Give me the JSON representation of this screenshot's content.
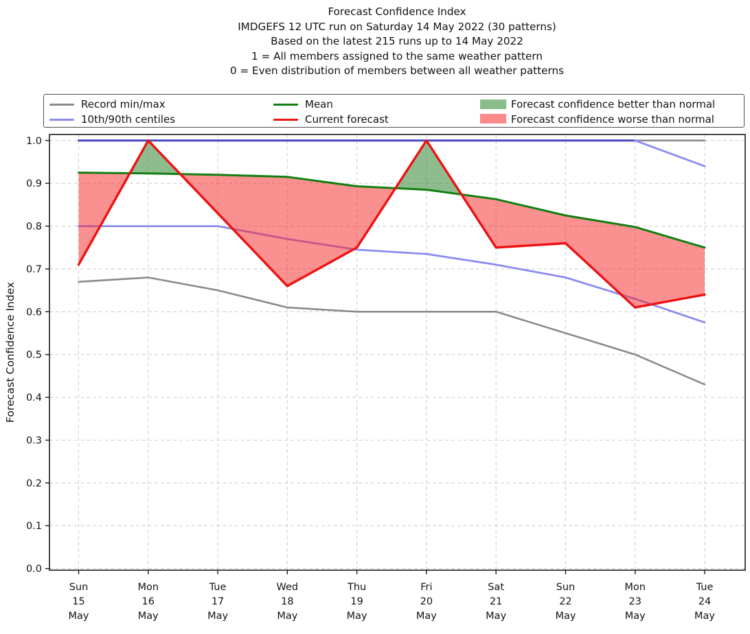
{
  "title": {
    "lines": [
      "Forecast Confidence Index",
      "IMDGEFS 12 UTC run on Saturday 14 May 2022 (30 patterns)",
      "Based on the latest 215 runs up to 14 May 2022",
      "1 = All members assigned to the same weather pattern",
      "0 = Even distribution of members between all weather patterns"
    ]
  },
  "legend": {
    "items": [
      {
        "label": "Record min/max",
        "type": "line",
        "color": "#8a8a8a"
      },
      {
        "label": "10th/90th centiles",
        "type": "line",
        "color": "#8b8bf0"
      },
      {
        "label": "Mean",
        "type": "line",
        "color": "#117f11"
      },
      {
        "label": "Current forecast",
        "type": "line",
        "color": "#ee1111"
      },
      {
        "label": "Forecast confidence better than normal",
        "type": "patch",
        "color": "#8abd8a"
      },
      {
        "label": "Forecast confidence worse than normal",
        "type": "patch",
        "color": "#fa8a8a"
      }
    ]
  },
  "chart_data": {
    "type": "line",
    "title": "Forecast Confidence Index",
    "ylabel": "Forecast Confidence Index",
    "ylim": [
      0.0,
      1.0
    ],
    "ytick_step": 0.1,
    "grid": true,
    "grid_style": "dashed",
    "legend_position": "top",
    "categories": [
      {
        "dow": "Sun",
        "day": "15",
        "mon": "May"
      },
      {
        "dow": "Mon",
        "day": "16",
        "mon": "May"
      },
      {
        "dow": "Tue",
        "day": "17",
        "mon": "May"
      },
      {
        "dow": "Wed",
        "day": "18",
        "mon": "May"
      },
      {
        "dow": "Thu",
        "day": "19",
        "mon": "May"
      },
      {
        "dow": "Fri",
        "day": "20",
        "mon": "May"
      },
      {
        "dow": "Sat",
        "day": "21",
        "mon": "May"
      },
      {
        "dow": "Sun",
        "day": "22",
        "mon": "May"
      },
      {
        "dow": "Mon",
        "day": "23",
        "mon": "May"
      },
      {
        "dow": "Tue",
        "day": "24",
        "mon": "May"
      }
    ],
    "series": [
      {
        "name": "Record max",
        "color": "#8a8a8a",
        "width": 2.6,
        "values": [
          1.0,
          1.0,
          1.0,
          1.0,
          1.0,
          1.0,
          1.0,
          1.0,
          1.0,
          1.0
        ]
      },
      {
        "name": "Record min",
        "color": "#8a8a8a",
        "width": 2.6,
        "values": [
          0.67,
          0.68,
          0.65,
          0.61,
          0.6,
          0.6,
          0.6,
          0.55,
          0.5,
          0.43
        ]
      },
      {
        "name": "90th centile",
        "color": "#8b8bf0",
        "width": 2.8,
        "overlap_color": "#4444bb",
        "values": [
          1.0,
          1.0,
          1.0,
          1.0,
          1.0,
          1.0,
          1.0,
          1.0,
          1.0,
          0.94
        ]
      },
      {
        "name": "10th centile",
        "color": "#8b8bf0",
        "width": 2.8,
        "values": [
          0.8,
          0.8,
          0.8,
          0.77,
          0.745,
          0.735,
          0.71,
          0.68,
          0.63,
          0.575
        ]
      },
      {
        "name": "Mean",
        "color": "#117f11",
        "width": 3.0,
        "values": [
          0.925,
          0.923,
          0.92,
          0.915,
          0.893,
          0.885,
          0.863,
          0.825,
          0.798,
          0.75
        ]
      },
      {
        "name": "Current forecast",
        "color": "#ee1111",
        "width": 3.4,
        "values": [
          0.71,
          1.0,
          0.83,
          0.66,
          0.75,
          1.0,
          0.75,
          0.76,
          0.61,
          0.64
        ]
      }
    ],
    "fills": {
      "better_than_normal_color": "rgba(60,140,60,0.58)",
      "worse_than_normal_color": "rgba(246,42,42,0.52)",
      "between": [
        "Mean",
        "Current forecast"
      ]
    }
  }
}
